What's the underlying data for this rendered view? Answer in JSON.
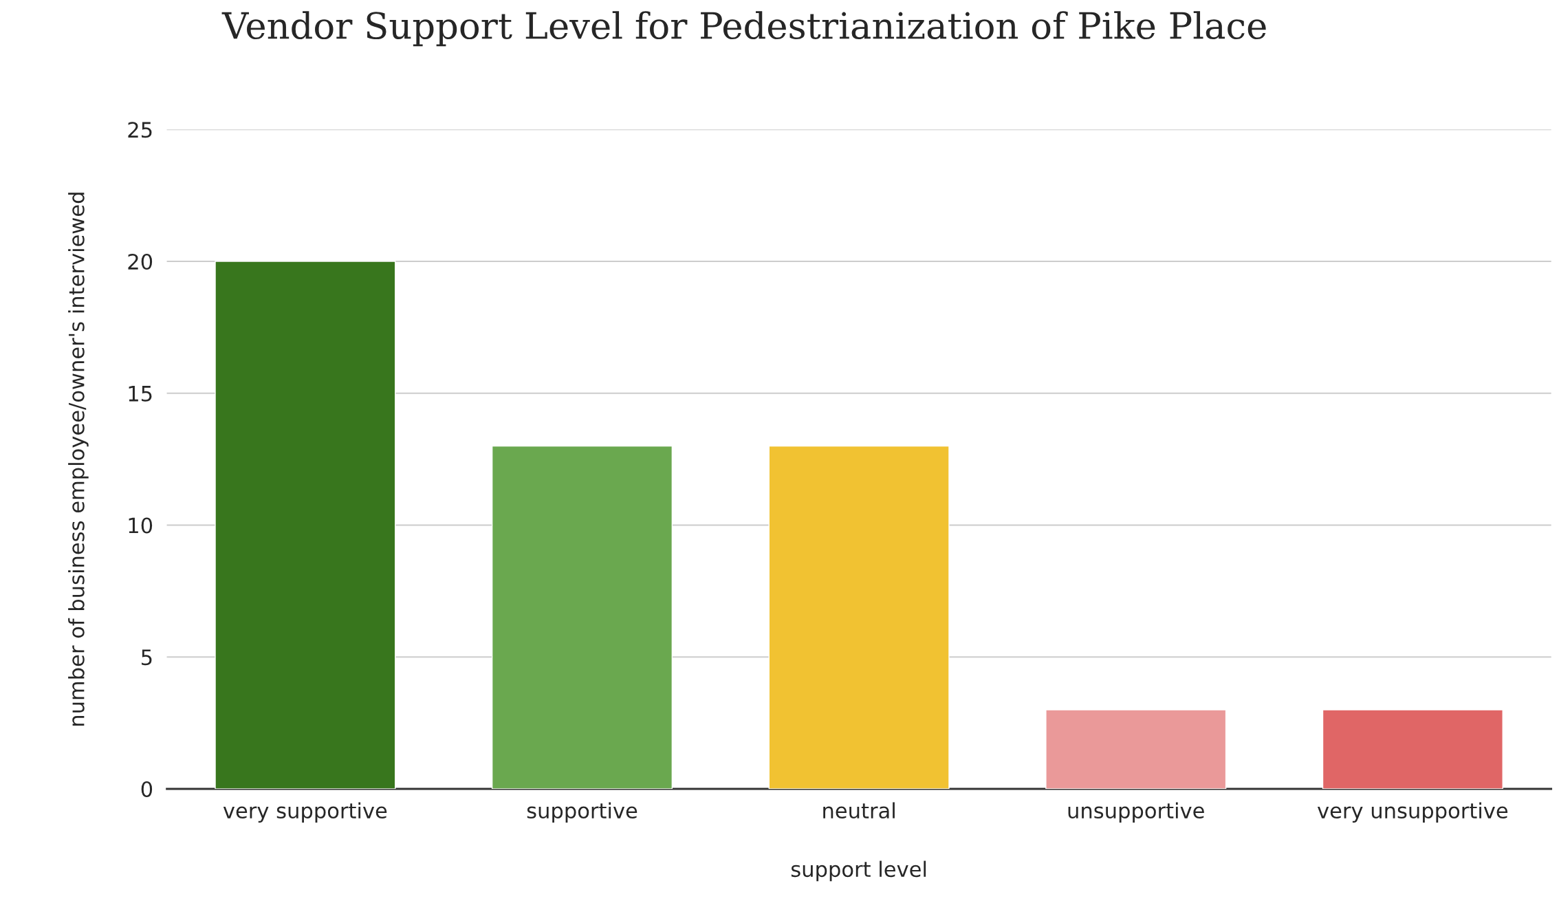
{
  "chart_data": {
    "type": "bar",
    "title": "Vendor Support Level for Pedestrianization of Pike Place",
    "xlabel": "support level",
    "ylabel": "number of business employee/owner's interviewed",
    "categories": [
      "very supportive",
      "supportive",
      "neutral",
      "unsupportive",
      "very unsupportive"
    ],
    "values": [
      20,
      13,
      13,
      3,
      3
    ],
    "colors": [
      "#38761d",
      "#6aa84f",
      "#f1c232",
      "#ea9999",
      "#e06666"
    ],
    "ylim": [
      0,
      25
    ],
    "yticks": [
      0,
      5,
      10,
      15,
      20,
      25
    ],
    "grid": "y",
    "legend": false
  }
}
